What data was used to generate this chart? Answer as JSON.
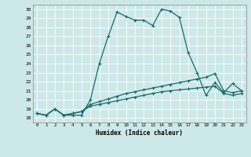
{
  "title": "",
  "xlabel": "Humidex (Indice chaleur)",
  "bg_color": "#cce8e8",
  "line_color": "#1a6b6b",
  "xlim": [
    -0.5,
    23.5
  ],
  "ylim": [
    17.5,
    30.5
  ],
  "xticks": [
    0,
    1,
    2,
    3,
    4,
    5,
    6,
    7,
    8,
    9,
    10,
    11,
    12,
    13,
    14,
    15,
    16,
    17,
    18,
    19,
    20,
    21,
    22,
    23
  ],
  "yticks": [
    18,
    19,
    20,
    21,
    22,
    23,
    24,
    25,
    26,
    27,
    28,
    29,
    30
  ],
  "line1_x": [
    0,
    1,
    2,
    3,
    4,
    5,
    6,
    7,
    8,
    9,
    10,
    11,
    12,
    13,
    14,
    15,
    16,
    17,
    18,
    19,
    20,
    21,
    22,
    23
  ],
  "line1_y": [
    18.5,
    18.3,
    19.0,
    18.3,
    18.3,
    18.3,
    20.0,
    24.0,
    27.0,
    29.7,
    29.2,
    28.8,
    28.8,
    28.2,
    30.0,
    29.8,
    29.1,
    25.2,
    23.0,
    20.5,
    21.9,
    20.8,
    21.8,
    21.0
  ],
  "line2_x": [
    0,
    1,
    2,
    3,
    4,
    5,
    6,
    7,
    8,
    9,
    10,
    11,
    12,
    13,
    14,
    15,
    16,
    17,
    18,
    19,
    20,
    21,
    22,
    23
  ],
  "line2_y": [
    18.5,
    18.3,
    19.0,
    18.3,
    18.5,
    18.7,
    19.5,
    19.8,
    20.1,
    20.4,
    20.7,
    20.9,
    21.1,
    21.3,
    21.5,
    21.7,
    21.9,
    22.1,
    22.3,
    22.5,
    22.9,
    21.0,
    20.8,
    21.0
  ],
  "line3_x": [
    0,
    1,
    2,
    3,
    4,
    5,
    6,
    7,
    8,
    9,
    10,
    11,
    12,
    13,
    14,
    15,
    16,
    17,
    18,
    19,
    20,
    21,
    22,
    23
  ],
  "line3_y": [
    18.5,
    18.3,
    19.0,
    18.3,
    18.5,
    18.7,
    19.3,
    19.5,
    19.7,
    19.9,
    20.1,
    20.3,
    20.5,
    20.7,
    20.9,
    21.0,
    21.1,
    21.2,
    21.3,
    21.4,
    21.5,
    20.7,
    20.5,
    20.7
  ]
}
